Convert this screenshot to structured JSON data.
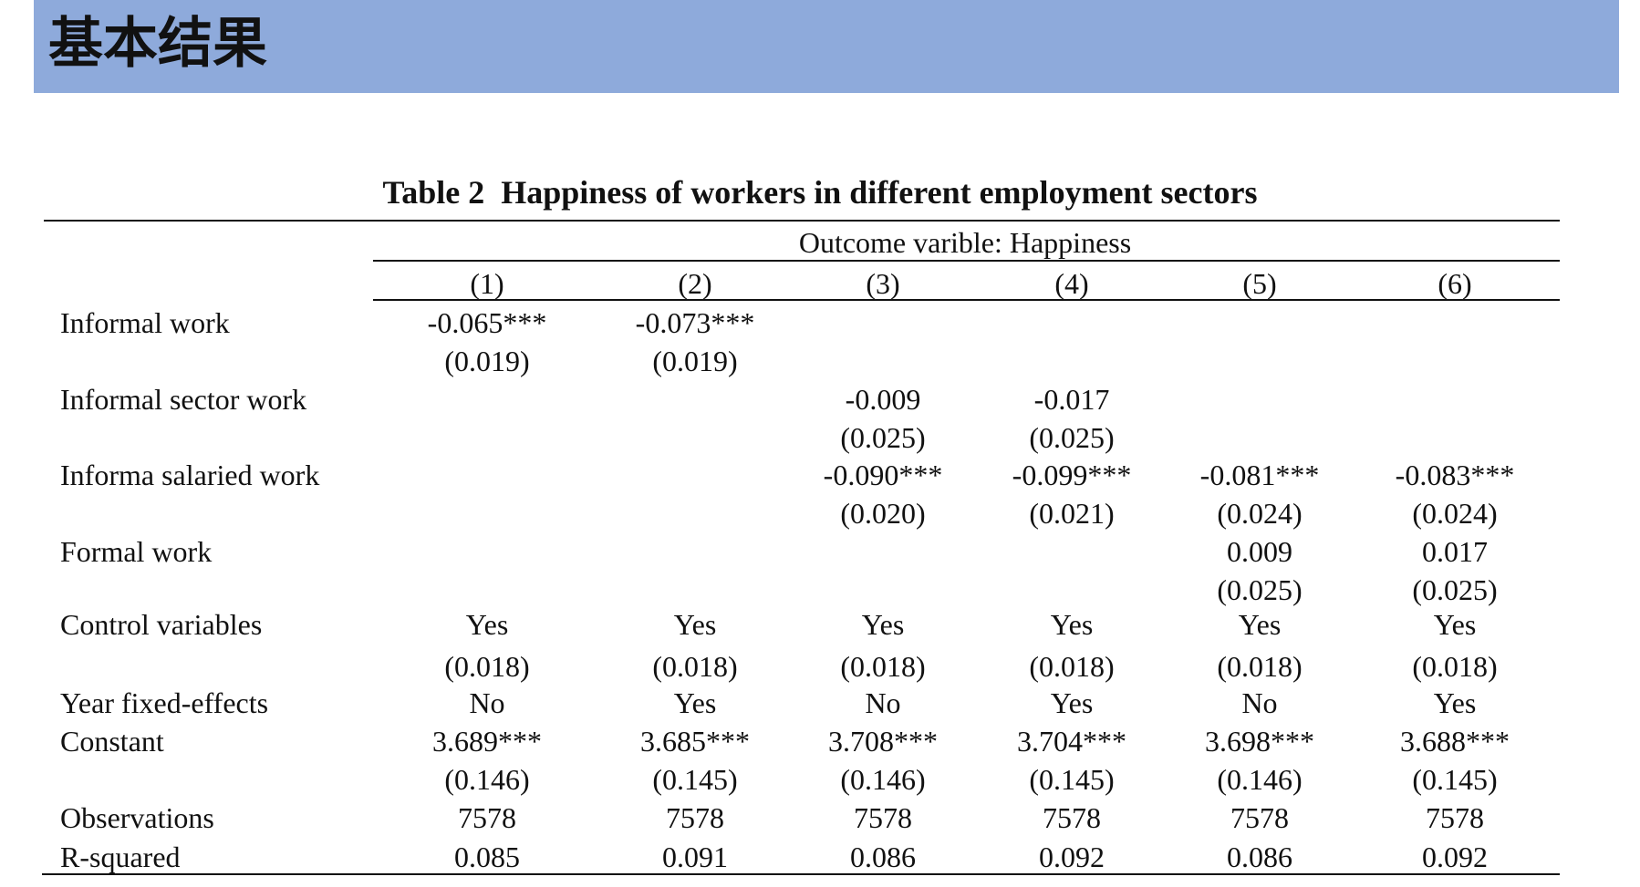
{
  "header": {
    "title": "基本结果"
  },
  "table": {
    "number": "Table 2",
    "title": "Happiness of workers in different employment sectors",
    "outcome_label": "Outcome varible: Happiness",
    "columns": [
      "(1)",
      "(2)",
      "(3)",
      "(4)",
      "(5)",
      "(6)"
    ],
    "rows": [
      {
        "label": "Informal work",
        "coef": [
          "-0.065***",
          "-0.073***",
          "",
          "",
          "",
          ""
        ],
        "se": [
          "(0.019)",
          "(0.019)",
          "",
          "",
          "",
          ""
        ]
      },
      {
        "label": "Informal sector work",
        "coef": [
          "",
          "",
          "-0.009",
          "-0.017",
          "",
          ""
        ],
        "se": [
          "",
          "",
          "(0.025)",
          "(0.025)",
          "",
          ""
        ]
      },
      {
        "label": "Informa salaried work",
        "coef": [
          "",
          "",
          "-0.090***",
          "-0.099***",
          "-0.081***",
          "-0.083***"
        ],
        "se": [
          "",
          "",
          "(0.020)",
          "(0.021)",
          "(0.024)",
          "(0.024)"
        ]
      },
      {
        "label": "Formal work",
        "coef": [
          "",
          "",
          "",
          "",
          "0.009",
          "0.017"
        ],
        "se": [
          "",
          "",
          "",
          "",
          "(0.025)",
          "(0.025)"
        ]
      },
      {
        "label": "Control variables",
        "coef": [
          "Yes",
          "Yes",
          "Yes",
          "Yes",
          "Yes",
          "Yes"
        ],
        "se": [
          "(0.018)",
          "(0.018)",
          "(0.018)",
          "(0.018)",
          "(0.018)",
          "(0.018)"
        ]
      },
      {
        "label": "Year fixed-effects",
        "coef": [
          "No",
          "Yes",
          "No",
          "Yes",
          "No",
          "Yes"
        ]
      },
      {
        "label": "Constant",
        "coef": [
          "3.689***",
          "3.685***",
          "3.708***",
          "3.704***",
          "3.698***",
          "3.688***"
        ],
        "se": [
          "(0.146)",
          "(0.145)",
          "(0.146)",
          "(0.145)",
          "(0.146)",
          "(0.145)"
        ]
      },
      {
        "label": "Observations",
        "coef": [
          "7578",
          "7578",
          "7578",
          "7578",
          "7578",
          "7578"
        ]
      },
      {
        "label": "R-squared",
        "coef": [
          "0.085",
          "0.091",
          "0.086",
          "0.092",
          "0.086",
          "0.092"
        ]
      }
    ]
  }
}
